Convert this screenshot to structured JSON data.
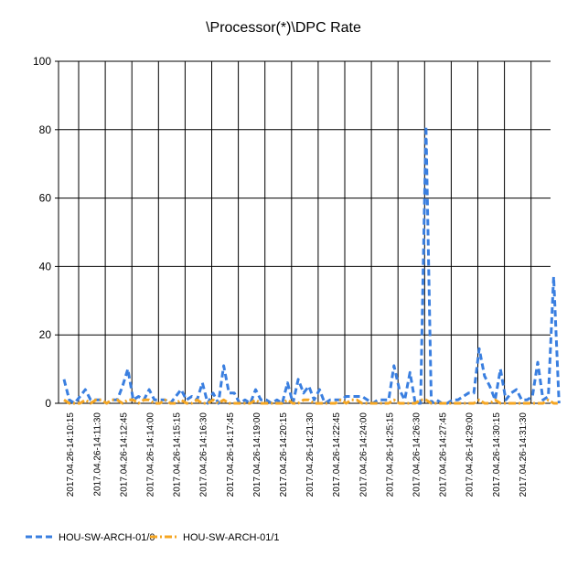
{
  "chart_data": {
    "type": "line",
    "title": "\\Processor(*)\\DPC Rate",
    "xlabel": "",
    "ylabel": "",
    "ylim": [
      0,
      100
    ],
    "yticks": [
      0,
      20,
      40,
      60,
      80,
      100
    ],
    "grid": true,
    "legend_position": "bottom-left",
    "x_tick_labels": [
      "2017.04.26-14:10:15",
      "2017.04.26-14:11:30",
      "2017.04.26-14:12:45",
      "2017.04.26-14:14:00",
      "2017.04.26-14:15:15",
      "2017.04.26-14:16:30",
      "2017.04.26-14:17:45",
      "2017.04.26-14:19:00",
      "2017.04.26-14:20:15",
      "2017.04.26-14:21:30",
      "2017.04.26-14:22:45",
      "2017.04.26-14:24:00",
      "2017.04.26-14:25:15",
      "2017.04.26-14:26:30",
      "2017.04.26-14:27:45",
      "2017.04.26-14:29:00",
      "2017.04.26-14:30:15",
      "2017.04.26-14:31:30"
    ],
    "points_per_tick": 5,
    "series": [
      {
        "name": "HOU-SW-ARCH-01/0",
        "color": "#3a7fe0",
        "dash": "dashed",
        "values": [
          7,
          1,
          0,
          2,
          4,
          1,
          1,
          1,
          0,
          1,
          1,
          5,
          10,
          1,
          2,
          1,
          4,
          1,
          1,
          1,
          0,
          2,
          4,
          1,
          2,
          1,
          6,
          0,
          3,
          0,
          11,
          3,
          3,
          0,
          1,
          0,
          4,
          1,
          1,
          0,
          1,
          0,
          6,
          0,
          7,
          3,
          5,
          1,
          4,
          0,
          1,
          1,
          1,
          2,
          2,
          2,
          2,
          1,
          0,
          1,
          1,
          1,
          11,
          4,
          1,
          9,
          0,
          0,
          81,
          0,
          1,
          0,
          0,
          1,
          1,
          2,
          3,
          3,
          16,
          8,
          5,
          1,
          10,
          1,
          3,
          4,
          1,
          1,
          2,
          12,
          1,
          2,
          37,
          0
        ]
      },
      {
        "name": "HOU-SW-ARCH-01/1",
        "color": "#f5a623",
        "dash": "dash-dot",
        "values": [
          1,
          0,
          0,
          0,
          1,
          0,
          1,
          1,
          0,
          1,
          1,
          0,
          1,
          1,
          0,
          1,
          1,
          0,
          0,
          1,
          0,
          0,
          1,
          0,
          0,
          1,
          0,
          0,
          1,
          0,
          1,
          0,
          0,
          0,
          0,
          0,
          1,
          0,
          0,
          0,
          0,
          0,
          1,
          0,
          0,
          1,
          1,
          0,
          0,
          0,
          0,
          0,
          1,
          0,
          1,
          1,
          0,
          0,
          0,
          0,
          0,
          0,
          1,
          0,
          0,
          0,
          0,
          1,
          1,
          0,
          0,
          0,
          0,
          0,
          0,
          0,
          0,
          0,
          1,
          0,
          0,
          1,
          0,
          0,
          0,
          0,
          0,
          0,
          0,
          0,
          0,
          1,
          0,
          0
        ]
      }
    ]
  }
}
